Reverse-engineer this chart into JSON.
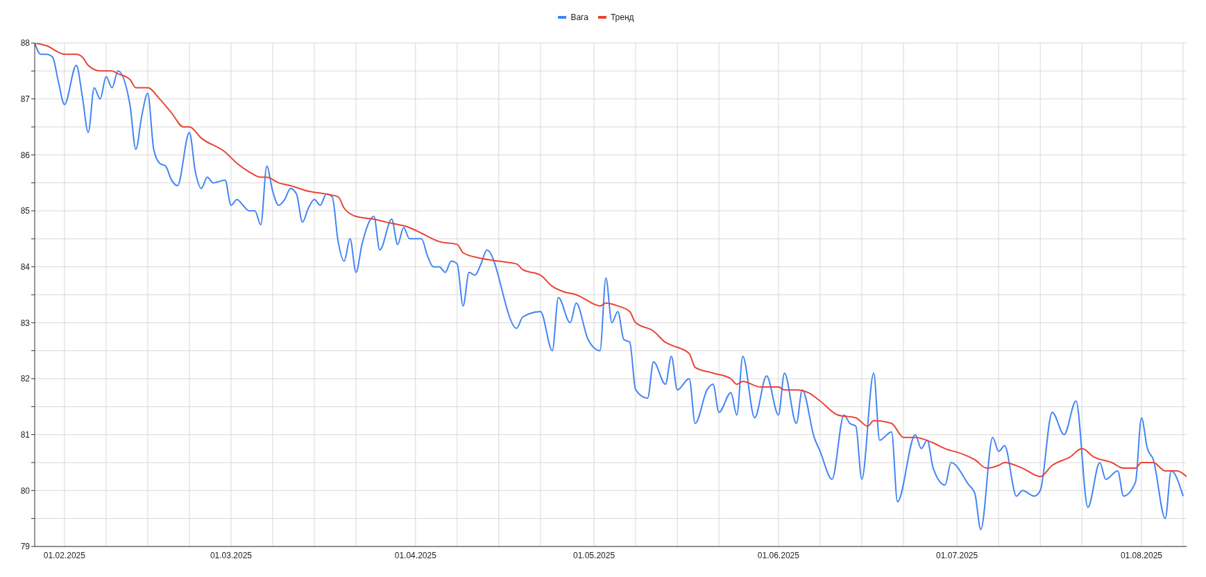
{
  "chart_data": {
    "type": "line",
    "xlim": [
      "2025-01-27",
      "2025-08-08T14:00"
    ],
    "ylim": [
      79,
      88
    ],
    "xticks": [
      {
        "value": "2025-02-01",
        "label": "01.02.2025"
      },
      {
        "value": "2025-02-08",
        "label": null
      },
      {
        "value": "2025-02-15",
        "label": null
      },
      {
        "value": "2025-02-22",
        "label": null
      },
      {
        "value": "2025-03-01",
        "label": "01.03.2025"
      },
      {
        "value": "2025-03-08",
        "label": null
      },
      {
        "value": "2025-03-15",
        "label": null
      },
      {
        "value": "2025-03-22",
        "label": null
      },
      {
        "value": "2025-04-01",
        "label": "01.04.2025"
      },
      {
        "value": "2025-04-08",
        "label": null
      },
      {
        "value": "2025-04-15",
        "label": null
      },
      {
        "value": "2025-04-22",
        "label": null
      },
      {
        "value": "2025-05-01",
        "label": "01.05.2025"
      },
      {
        "value": "2025-05-08",
        "label": null
      },
      {
        "value": "2025-05-15",
        "label": null
      },
      {
        "value": "2025-05-22",
        "label": null
      },
      {
        "value": "2025-06-01",
        "label": "01.06.2025"
      },
      {
        "value": "2025-06-08",
        "label": null
      },
      {
        "value": "2025-06-15",
        "label": null
      },
      {
        "value": "2025-06-22",
        "label": null
      },
      {
        "value": "2025-07-01",
        "label": "01.07.2025"
      },
      {
        "value": "2025-07-08",
        "label": null
      },
      {
        "value": "2025-07-15",
        "label": null
      },
      {
        "value": "2025-07-22",
        "label": null
      },
      {
        "value": "2025-08-01",
        "label": "01.08.2025"
      },
      {
        "value": "2025-08-08",
        "label": null
      }
    ],
    "yticks": [
      79,
      {
        "value": 79.5,
        "label": null
      },
      80,
      {
        "value": 80.5,
        "label": null
      },
      81,
      {
        "value": 81.5,
        "label": null
      },
      82,
      {
        "value": 82.5,
        "label": null
      },
      83,
      {
        "value": 83.5,
        "label": null
      },
      84,
      {
        "value": 84.5,
        "label": null
      },
      85,
      {
        "value": 85.5,
        "label": null
      },
      86,
      {
        "value": 86.5,
        "label": null
      },
      87,
      {
        "value": 87.5,
        "label": null
      },
      88
    ],
    "grid": true,
    "legend": "top",
    "marker": "none",
    "line_style": "solid",
    "series": [
      {
        "name": "Вага",
        "color": "#4285f4",
        "x": [
          "2025-01-27",
          "2025-01-28",
          "2025-01-29",
          "2025-01-30",
          "2025-01-31",
          "2025-02-01",
          "2025-02-03",
          "2025-02-04",
          "2025-02-05",
          "2025-02-06",
          "2025-02-07",
          "2025-02-08",
          "2025-02-09",
          "2025-02-10",
          "2025-02-12",
          "2025-02-13",
          "2025-02-14",
          "2025-02-15",
          "2025-02-16",
          "2025-02-17",
          "2025-02-18",
          "2025-02-19",
          "2025-02-20",
          "2025-02-22",
          "2025-02-23",
          "2025-02-24",
          "2025-02-25",
          "2025-02-26",
          "2025-02-28",
          "2025-03-01",
          "2025-03-02",
          "2025-03-03",
          "2025-03-04",
          "2025-03-05",
          "2025-03-06",
          "2025-03-07",
          "2025-03-08",
          "2025-03-09",
          "2025-03-10",
          "2025-03-11",
          "2025-03-12",
          "2025-03-13",
          "2025-03-14",
          "2025-03-15",
          "2025-03-16",
          "2025-03-17",
          "2025-03-18",
          "2025-03-19",
          "2025-03-20",
          "2025-03-21",
          "2025-03-22",
          "2025-03-23",
          "2025-03-25",
          "2025-03-26",
          "2025-03-28",
          "2025-03-29",
          "2025-03-30",
          "2025-03-31",
          "2025-04-02",
          "2025-04-03",
          "2025-04-04",
          "2025-04-05",
          "2025-04-06",
          "2025-04-07",
          "2025-04-08",
          "2025-04-09",
          "2025-04-10",
          "2025-04-11",
          "2025-04-12",
          "2025-04-13",
          "2025-04-18",
          "2025-04-19",
          "2025-04-22",
          "2025-04-24",
          "2025-04-25",
          "2025-04-27",
          "2025-04-28",
          "2025-04-30",
          "2025-05-02",
          "2025-05-03",
          "2025-05-04",
          "2025-05-05",
          "2025-05-06",
          "2025-05-07",
          "2025-05-08",
          "2025-05-10",
          "2025-05-11",
          "2025-05-13",
          "2025-05-14",
          "2025-05-15",
          "2025-05-17",
          "2025-05-18",
          "2025-05-20",
          "2025-05-21",
          "2025-05-22",
          "2025-05-24",
          "2025-05-25",
          "2025-05-26",
          "2025-05-28",
          "2025-05-30",
          "2025-06-01",
          "2025-06-02",
          "2025-06-04",
          "2025-06-05",
          "2025-06-07",
          "2025-06-08",
          "2025-06-10",
          "2025-06-12",
          "2025-06-13",
          "2025-06-14",
          "2025-06-15",
          "2025-06-17",
          "2025-06-18",
          "2025-06-20",
          "2025-06-21",
          "2025-06-24",
          "2025-06-25",
          "2025-06-26",
          "2025-06-27",
          "2025-06-29",
          "2025-06-30",
          "2025-07-03",
          "2025-07-04",
          "2025-07-05",
          "2025-07-07",
          "2025-07-08",
          "2025-07-09",
          "2025-07-11",
          "2025-07-12",
          "2025-07-14",
          "2025-07-15",
          "2025-07-17",
          "2025-07-19",
          "2025-07-21",
          "2025-07-23",
          "2025-07-25",
          "2025-07-26",
          "2025-07-28",
          "2025-07-29",
          "2025-07-31",
          "2025-08-01",
          "2025-08-02",
          "2025-08-03",
          "2025-08-05",
          "2025-08-06",
          "2025-08-08"
        ],
        "values": [
          88.0,
          87.8,
          87.8,
          87.75,
          87.3,
          86.9,
          87.6,
          87.05,
          86.4,
          87.2,
          87.0,
          87.4,
          87.2,
          87.5,
          86.9,
          86.1,
          86.7,
          87.1,
          86.1,
          85.85,
          85.8,
          85.55,
          85.45,
          86.4,
          85.7,
          85.4,
          85.6,
          85.5,
          85.55,
          85.1,
          85.2,
          85.1,
          85.0,
          85.0,
          84.75,
          85.8,
          85.35,
          85.1,
          85.2,
          85.4,
          85.3,
          84.8,
          85.05,
          85.2,
          85.1,
          85.3,
          85.25,
          84.45,
          84.1,
          84.5,
          83.9,
          84.4,
          84.9,
          84.3,
          84.85,
          84.4,
          84.7,
          84.5,
          84.5,
          84.2,
          84.0,
          84.0,
          83.9,
          84.1,
          84.05,
          83.3,
          83.9,
          83.85,
          84.05,
          84.3,
          82.9,
          83.1,
          83.2,
          82.5,
          83.45,
          83.0,
          83.35,
          82.7,
          82.5,
          83.8,
          83.0,
          83.2,
          82.7,
          82.65,
          81.8,
          81.65,
          82.3,
          81.9,
          82.4,
          81.8,
          82.0,
          81.2,
          81.8,
          81.9,
          81.4,
          81.75,
          81.35,
          82.4,
          81.3,
          82.05,
          81.35,
          82.1,
          81.2,
          81.8,
          80.95,
          80.7,
          80.2,
          81.35,
          81.2,
          81.15,
          80.2,
          82.1,
          80.9,
          81.05,
          79.8,
          81.0,
          80.75,
          80.9,
          80.4,
          80.1,
          80.5,
          80.1,
          79.95,
          79.3,
          80.95,
          80.7,
          80.8,
          79.9,
          80.0,
          79.9,
          80.0,
          81.4,
          81.0,
          81.6,
          79.7,
          80.5,
          80.2,
          80.35,
          79.9,
          80.15,
          81.3,
          80.75,
          80.55,
          79.5,
          80.35,
          79.9
        ]
      },
      {
        "name": "Тренд",
        "color": "#ea4335",
        "x": [
          "2025-01-27",
          "2025-01-29",
          "2025-02-01",
          "2025-02-03",
          "2025-02-04",
          "2025-02-05",
          "2025-02-07",
          "2025-02-09",
          "2025-02-10",
          "2025-02-12",
          "2025-02-13",
          "2025-02-15",
          "2025-02-17",
          "2025-02-19",
          "2025-02-21",
          "2025-02-22",
          "2025-02-24",
          "2025-02-28",
          "2025-03-02",
          "2025-03-04",
          "2025-03-06",
          "2025-03-07",
          "2025-03-09",
          "2025-03-11",
          "2025-03-14",
          "2025-03-17",
          "2025-03-19",
          "2025-03-20",
          "2025-03-22",
          "2025-03-25",
          "2025-03-27",
          "2025-03-31",
          "2025-04-02",
          "2025-04-05",
          "2025-04-08",
          "2025-04-09",
          "2025-04-12",
          "2025-04-15",
          "2025-04-18",
          "2025-04-19",
          "2025-04-22",
          "2025-04-24",
          "2025-04-26",
          "2025-04-28",
          "2025-04-29",
          "2025-05-02",
          "2025-05-03",
          "2025-05-05",
          "2025-05-07",
          "2025-05-08",
          "2025-05-11",
          "2025-05-13",
          "2025-05-14",
          "2025-05-17",
          "2025-05-18",
          "2025-05-21",
          "2025-05-24",
          "2025-05-25",
          "2025-05-26",
          "2025-05-29",
          "2025-06-01",
          "2025-06-02",
          "2025-06-04",
          "2025-06-06",
          "2025-06-08",
          "2025-06-11",
          "2025-06-14",
          "2025-06-16",
          "2025-06-17",
          "2025-06-20",
          "2025-06-22",
          "2025-06-24",
          "2025-06-27",
          "2025-06-29",
          "2025-07-02",
          "2025-07-04",
          "2025-07-06",
          "2025-07-08",
          "2025-07-09",
          "2025-07-12",
          "2025-07-15",
          "2025-07-17",
          "2025-07-20",
          "2025-07-22",
          "2025-07-24",
          "2025-07-27",
          "2025-07-29",
          "2025-07-31",
          "2025-08-01",
          "2025-08-03",
          "2025-08-05",
          "2025-08-07",
          "2025-08-08T14:00"
        ],
        "values": [
          88.0,
          87.95,
          87.8,
          87.8,
          87.75,
          87.6,
          87.5,
          87.5,
          87.45,
          87.35,
          87.2,
          87.2,
          87.0,
          86.75,
          86.5,
          86.5,
          86.3,
          86.05,
          85.85,
          85.7,
          85.6,
          85.6,
          85.5,
          85.45,
          85.35,
          85.3,
          85.25,
          85.05,
          84.9,
          84.85,
          84.8,
          84.7,
          84.6,
          84.45,
          84.4,
          84.25,
          84.15,
          84.1,
          84.05,
          83.95,
          83.85,
          83.65,
          83.55,
          83.5,
          83.45,
          83.3,
          83.35,
          83.3,
          83.2,
          83.0,
          82.85,
          82.65,
          82.6,
          82.45,
          82.2,
          82.1,
          82.0,
          81.9,
          81.95,
          81.85,
          81.85,
          81.8,
          81.8,
          81.75,
          81.6,
          81.35,
          81.3,
          81.15,
          81.25,
          81.2,
          80.95,
          80.95,
          80.85,
          80.75,
          80.65,
          80.55,
          80.4,
          80.45,
          80.5,
          80.4,
          80.25,
          80.45,
          80.6,
          80.75,
          80.6,
          80.5,
          80.4,
          80.4,
          80.5,
          80.5,
          80.35,
          80.35,
          80.25
        ]
      }
    ]
  }
}
